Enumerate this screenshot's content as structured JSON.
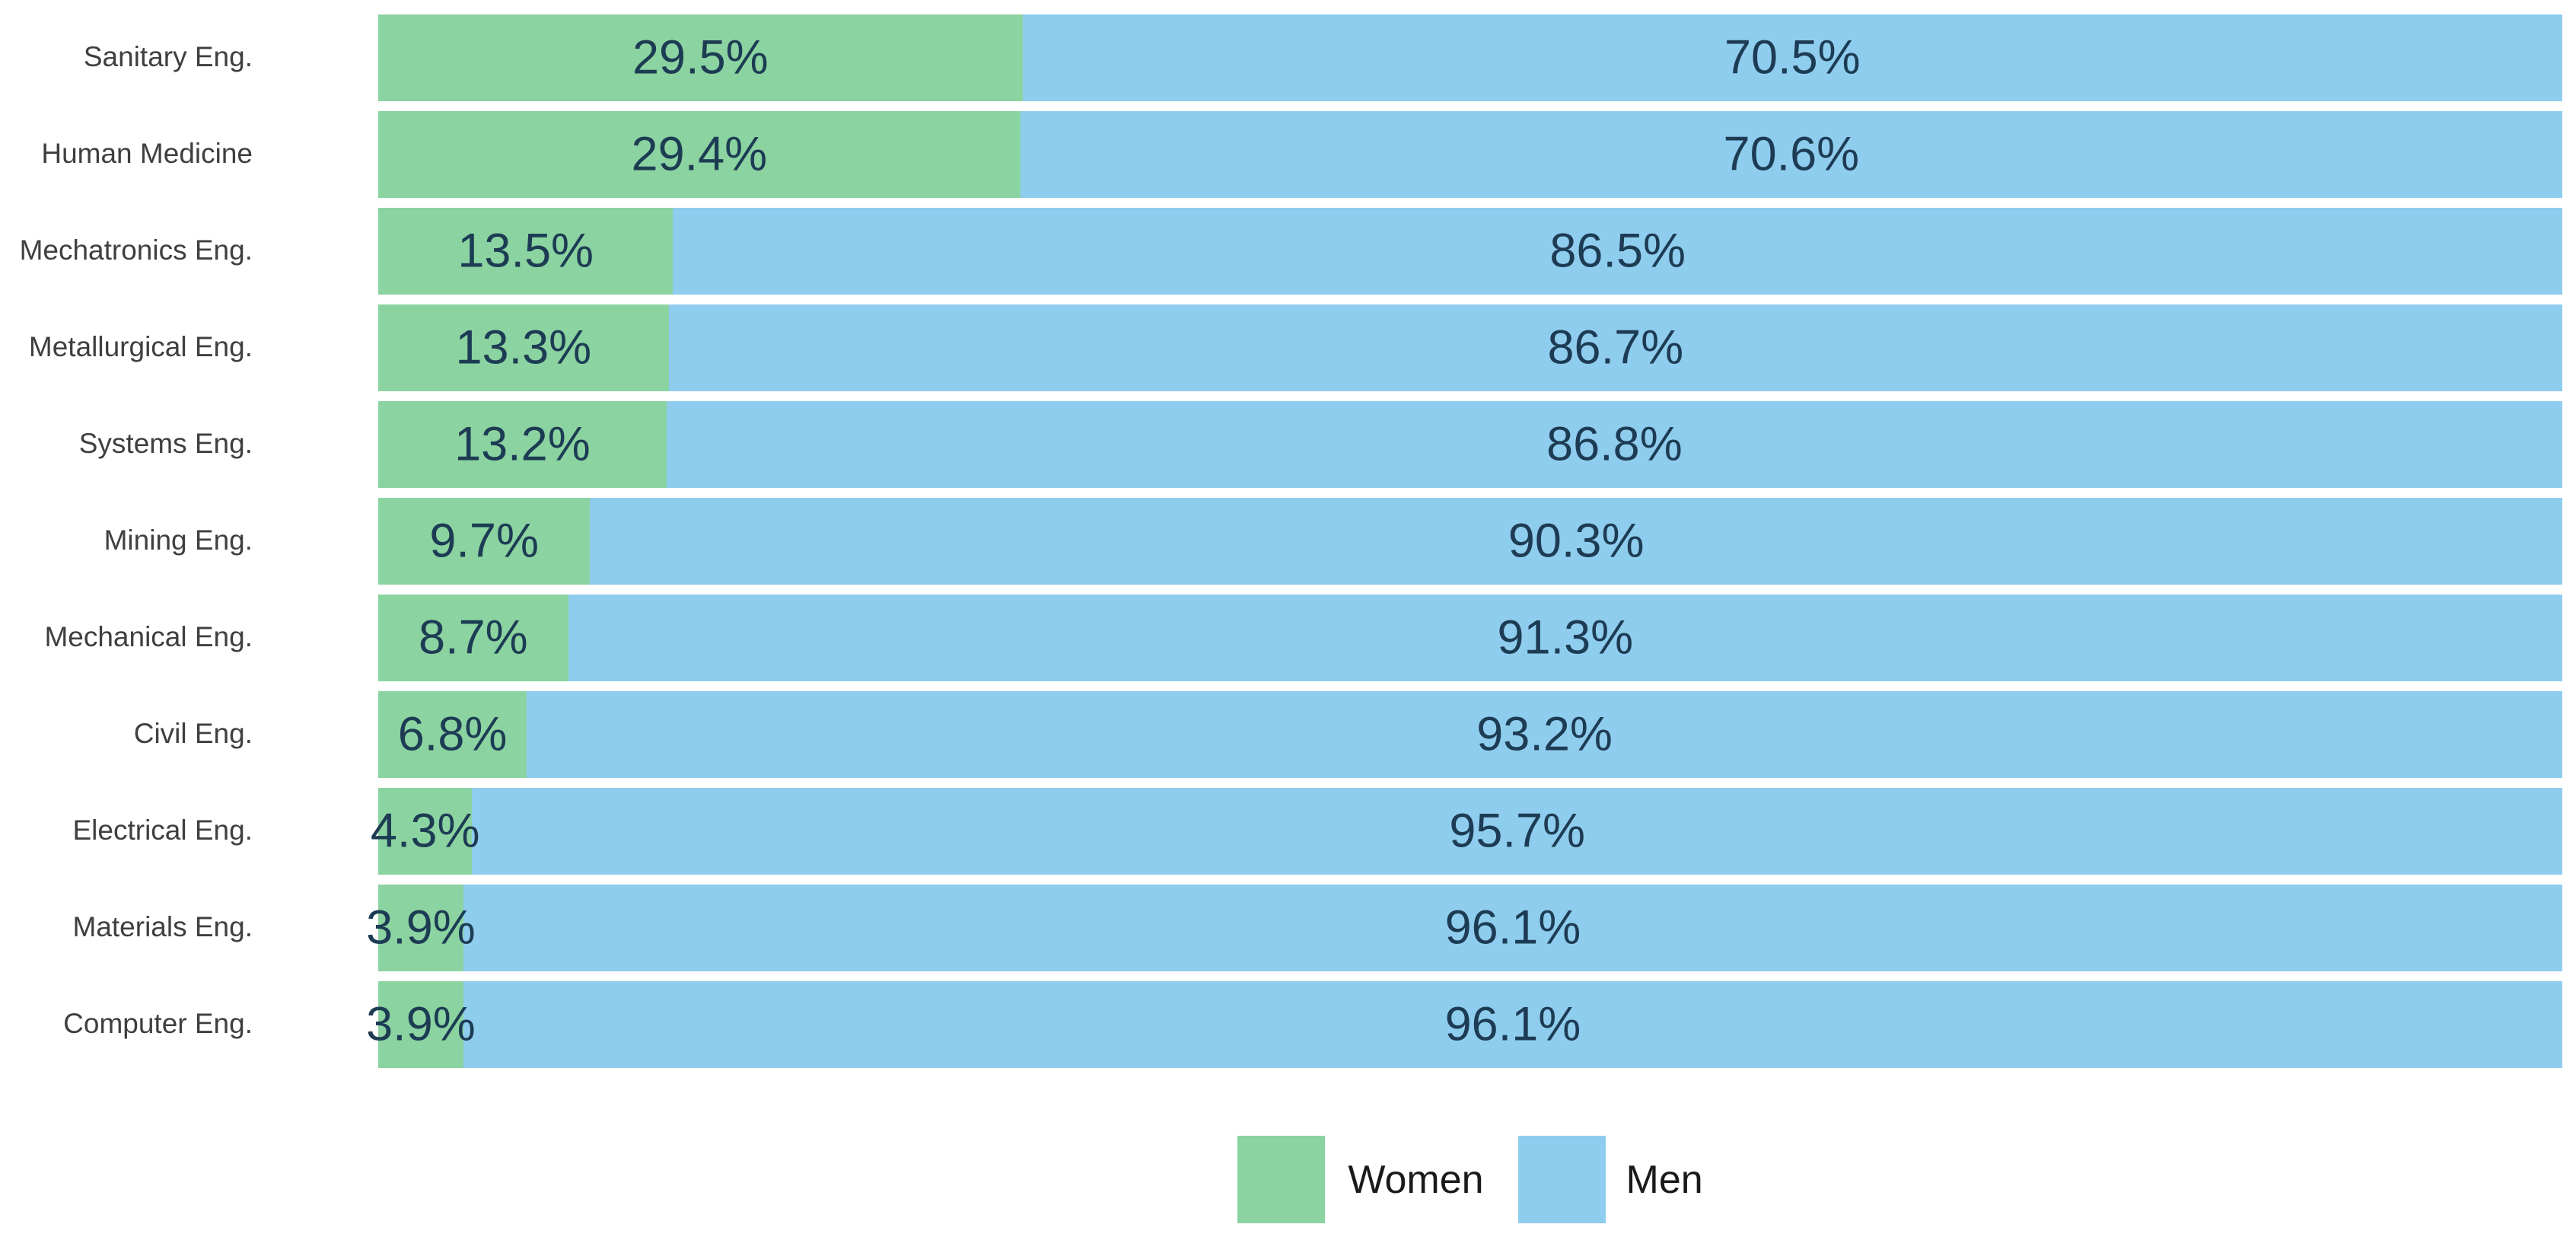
{
  "legend": {
    "women": "Women",
    "men": "Men"
  },
  "colors": {
    "women_fill": "#8bd3a0",
    "men_fill": "#8fcdee",
    "value_text": "#1d3c54",
    "category_text": "#3f3f3f",
    "legend_text": "#1a1a1a",
    "background": "#ffffff"
  },
  "chart_data": {
    "type": "bar",
    "orientation": "horizontal",
    "stacked": true,
    "title": "",
    "xlabel": "",
    "ylabel": "",
    "xlim": [
      0,
      100
    ],
    "grid": false,
    "legend_position": "bottom-center",
    "value_suffix": "%",
    "categories": [
      "Sanitary Eng.",
      "Human Medicine",
      "Mechatronics Eng.",
      "Metallurgical Eng.",
      "Systems Eng.",
      "Mining Eng.",
      "Mechanical Eng.",
      "Civil Eng.",
      "Electrical Eng.",
      "Materials Eng.",
      "Computer Eng."
    ],
    "series": [
      {
        "name": "Women",
        "color": "#8bd3a0",
        "values": [
          29.5,
          29.4,
          13.5,
          13.3,
          13.2,
          9.7,
          8.7,
          6.8,
          4.3,
          3.9,
          3.9
        ]
      },
      {
        "name": "Men",
        "color": "#8fcdee",
        "values": [
          70.5,
          70.6,
          86.5,
          86.7,
          86.8,
          90.3,
          91.3,
          93.2,
          95.7,
          96.1,
          96.1
        ]
      }
    ]
  }
}
